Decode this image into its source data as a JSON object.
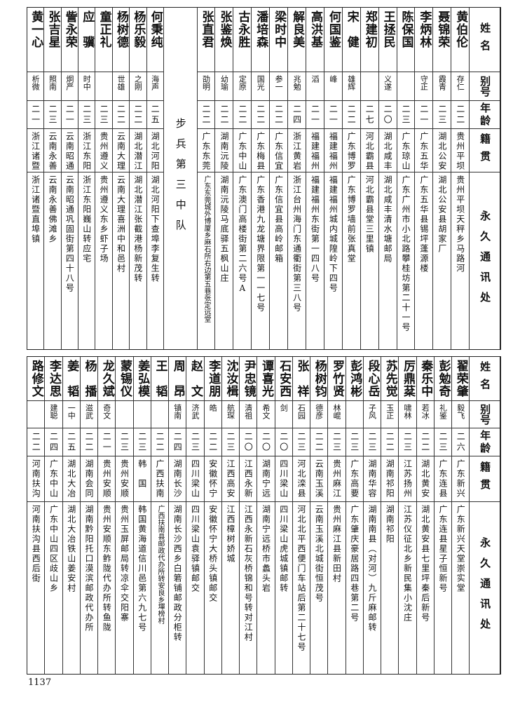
{
  "headers": {
    "name": "姓名",
    "alias": "别号",
    "age": "年龄",
    "origin": "籍贯",
    "address": "永久通讯处"
  },
  "top_section": {
    "group_a": [
      {
        "name": "黄伯伦",
        "alias": "存仁",
        "age": "二二",
        "origin": "贵州平坝",
        "address": "贵州平坝天秤乡马路河"
      },
      {
        "name": "聂锦荣",
        "alias": "霞青",
        "age": "二三",
        "origin": "湖北公安",
        "address": "湖北公安县胡家厂"
      },
      {
        "name": "李炳林",
        "alias": "守正",
        "age": "二一",
        "origin": "广东五华",
        "address": "广东五华县锡坪蓬源楼"
      },
      {
        "name": "陈保国",
        "alias": "",
        "age": "二三",
        "origin": "广东琼山",
        "address": "广东广州市小北路攀桂坊第二十一号"
      },
      {
        "name": "王拯民",
        "alias": "义遂",
        "age": "二〇",
        "origin": "湖北咸丰",
        "address": "湖北咸丰清水塘邮局"
      },
      {
        "name": "郑建初",
        "alias": "",
        "age": "二七",
        "origin": "河北霸县",
        "address": "河北霸县堂三里镇"
      },
      {
        "name": "宋　健",
        "alias": "雄辉",
        "age": "二二",
        "origin": "广东博罗",
        "address": "广东博罗墙前张真堂"
      },
      {
        "name": "何国鉴",
        "alias": "峰",
        "age": "二一",
        "origin": "福建福州",
        "address": "福建福州城内城隍岭下四号"
      },
      {
        "name": "高洪基",
        "alias": "滔",
        "age": "二一",
        "origin": "福建福州",
        "address": "福建福州东街第一四八号"
      },
      {
        "name": "解良美",
        "alias": "兆勉",
        "age": "二四",
        "origin": "浙江黄岩",
        "address": "浙江台州海门东通衢街第三八号"
      },
      {
        "name": "梁时中",
        "alias": "参一",
        "age": "二二",
        "origin": "广东信宜",
        "address": "广东信宜县高岭邮箱"
      },
      {
        "name": "潘培森",
        "alias": "国光",
        "age": "二二",
        "origin": "广东梅县",
        "address": "广东香港九龙塘界限第一一七号"
      },
      {
        "name": "古永胜",
        "alias": "定原",
        "age": "二二",
        "origin": "广东中山",
        "address": "广东澳门高楼街第二六号A"
      },
      {
        "name": "张鉴焕",
        "alias": "幼瑜",
        "age": "二二",
        "origin": "湖南沅陵",
        "address": "湖南沅陵马底驿五枫山庄"
      },
      {
        "name": "张直君",
        "alias": "劭明",
        "age": "二二",
        "origin": "广东东莞",
        "address": "广东东莞城外博厦乡麻石所右边第五巷张定远堂"
      }
    ],
    "divider_label": "步兵第三中队",
    "group_b": [
      {
        "name": "何秉纯",
        "alias": "海声",
        "age": "二五",
        "origin": "湖北河阳",
        "address": "湖北河阳下查埠李复生转"
      },
      {
        "name": "杨乐毅",
        "alias": "之刚",
        "age": "二二",
        "origin": "湖北潜江",
        "address": "湖北潜江张截港杨新茂转"
      },
      {
        "name": "杨树德",
        "alias": "世雄",
        "age": "二二",
        "origin": "云南大理",
        "address": "云南大理喜洲中和邑村"
      },
      {
        "name": "童正礼",
        "alias": "",
        "age": "二三",
        "origin": "贵州遵义",
        "address": "贵州遵义东乡虾子场"
      },
      {
        "name": "应　骥",
        "alias": "时中",
        "age": "二三",
        "origin": "浙江东阳",
        "address": "浙江东阳巍山转应宅"
      },
      {
        "name": "訾永荣",
        "alias": "炯严",
        "age": "二一",
        "origin": "云南昭通",
        "address": "云南昭通巩固街第四十八号"
      },
      {
        "name": "张吉星",
        "alias": "照南",
        "age": "二三",
        "origin": "云南永善",
        "address": "云南永善佛滩乡"
      },
      {
        "name": "黄一心",
        "alias": "析微",
        "age": "二一",
        "origin": "浙江诸暨",
        "address": "浙江诸暨直埠镇"
      }
    ]
  },
  "bottom_section": [
    {
      "name": "翟荣肇",
      "alias": "毅飞",
      "age": "二六",
      "origin": "广东新兴",
      "address": "广东新兴天堂崇实堂"
    },
    {
      "name": "彭勉奇",
      "alias": "礼鉴",
      "age": "二三",
      "origin": "广东连县",
      "address": "广东连县星子恒新号"
    },
    {
      "name": "秦乐中",
      "alias": "若冰",
      "age": "二二",
      "origin": "湖北黄安",
      "address": "湖北黄安县七里坪秦后新号"
    },
    {
      "name": "厉鼎棻",
      "alias": "啸林",
      "age": "二三",
      "origin": "江苏扬州",
      "address": "江苏仪征北乡新民集小沈庄"
    },
    {
      "name": "苏先觉",
      "alias": "玉正",
      "age": "二二",
      "origin": "湖南祁阳",
      "address": "湖南祁阳"
    },
    {
      "name": "段心岳",
      "alias": "子风",
      "age": "二三",
      "origin": "湖南华容",
      "address": "湖南南县（对河）九斤麻邮转"
    },
    {
      "name": "彭鸿彬",
      "alias": "",
      "age": "二三",
      "origin": "广东高要",
      "address": "广东肇庆豪居路四巷第二号"
    },
    {
      "name": "罗竹贤",
      "alias": "林崐",
      "age": "二三",
      "origin": "贵州麻江",
      "address": "贵州麻江县新田村"
    },
    {
      "name": "杨树钧",
      "alias": "德彦",
      "age": "二二",
      "origin": "云南玉溪",
      "address": "云南玉溪北城街恒茂号"
    },
    {
      "name": "张　祥",
      "alias": "石园",
      "age": "二三",
      "origin": "河北滦县",
      "address": "河北北平西便门车站后第二十七号"
    },
    {
      "name": "石安西",
      "alias": "剑",
      "age": "二〇",
      "origin": "四川梁山",
      "address": "四川梁山虎城镇邮转"
    },
    {
      "name": "谭喜光",
      "alias": "希文",
      "age": "二〇",
      "origin": "湖南宁远",
      "address": "湖南宁远桥市蠡头岩"
    },
    {
      "name": "尹忠镜",
      "alias": "清祖",
      "age": "二〇",
      "origin": "江西永新",
      "address": "江西永新石灰桥锦和号转对江村"
    },
    {
      "name": "沈汝楫",
      "alias": "航琛",
      "age": "二三",
      "origin": "江西高安",
      "address": "江西樟树娇城"
    },
    {
      "name": "李道朋",
      "alias": "皓",
      "age": "二二",
      "origin": "安徽怀宁",
      "address": "安徽怀宁大桥头镇邮交"
    },
    {
      "name": "赵　文",
      "alias": "济武",
      "age": "二三",
      "origin": "四川梁山",
      "address": "四川梁山袁驿镇邮交"
    },
    {
      "name": "周　昂",
      "alias": "镇南",
      "age": "二四",
      "origin": "湖南长沙",
      "address": "湖南长沙西乡白箬铺邮政分柜转"
    },
    {
      "name": "王　韬",
      "alias": "",
      "age": "二二",
      "origin": "广西扶南",
      "address": "广西扶南县邮政代办所转安良乡墠榜村"
    },
    {
      "name": "姜弘模",
      "alias": "",
      "age": "二三",
      "origin": "韩　国",
      "address": "韩国黄海道信川邑第六九七号"
    },
    {
      "name": "蒙锡仪",
      "alias": "",
      "age": "二三",
      "origin": "贵州安顺",
      "address": "贵州玉屏邮局转凉伞交阳寨"
    },
    {
      "name": "龙久斌",
      "alias": "奇文",
      "age": "二一",
      "origin": "贵州安顺",
      "address": "贵州安顺东鲊陇代办所转鱼陇"
    },
    {
      "name": "杨　播",
      "alias": "滋武",
      "age": "二二",
      "origin": "湖南会同",
      "address": "湖南黔阳托口漠滨邮政代办所"
    },
    {
      "name": "姜　韬",
      "alias": "一中",
      "age": "二五",
      "origin": "湖北大冶",
      "address": "湖北大冶铁山姜安村"
    },
    {
      "name": "李达思",
      "alias": "建聪",
      "age": "二四",
      "origin": "广东中山",
      "address": "广东中山四区歧山乡"
    },
    {
      "name": "路修文",
      "alias": "",
      "age": "二二",
      "origin": "河南扶沟",
      "address": "河南扶沟县西后街"
    }
  ],
  "page_number": "1137"
}
